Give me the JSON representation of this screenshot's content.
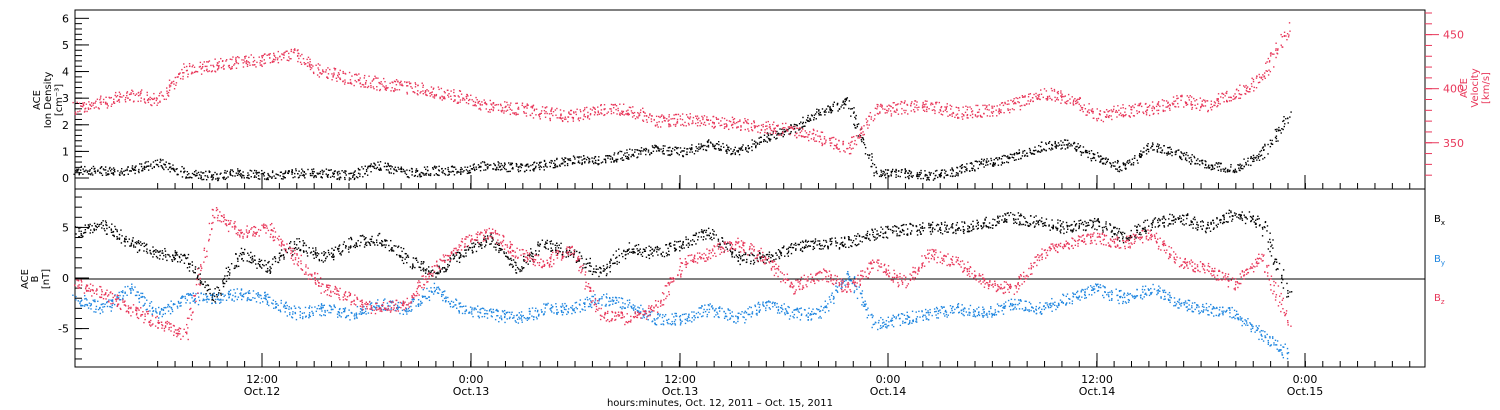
{
  "chart_data": [
    {
      "type": "scatter",
      "instrument": "ACE",
      "ylabel_left": [
        "ACE",
        "Ion Density",
        "[cm⁻³]"
      ],
      "ylabel_right": [
        "ACE",
        "Velocity",
        "[km/s]"
      ],
      "yticks_left": [
        "0",
        "1",
        "2",
        "3",
        "4",
        "5",
        "6"
      ],
      "ylim_left": [
        -0.3,
        6.2
      ],
      "yticks_right": [
        "350",
        "400",
        "450"
      ],
      "ylim_right": [
        310,
        470
      ],
      "series": [
        {
          "axis": "left",
          "color": "#000000",
          "x": [
            0,
            2,
            4,
            6,
            8,
            10,
            12,
            14,
            16,
            18,
            20,
            22,
            24,
            26,
            28,
            30,
            32,
            34,
            36,
            38,
            40,
            42,
            44,
            46,
            48,
            50,
            52,
            54,
            56,
            58,
            60,
            62,
            64,
            66,
            68,
            70,
            72,
            74,
            76,
            78,
            80,
            82,
            84,
            86,
            88
          ],
          "y": [
            0.3,
            0.3,
            0.3,
            0.6,
            0.2,
            0.1,
            0.2,
            0.1,
            0.2,
            0.2,
            0.1,
            0.5,
            0.2,
            0.3,
            0.3,
            0.5,
            0.4,
            0.5,
            0.7,
            0.7,
            0.9,
            1.1,
            1.0,
            1.3,
            1.0,
            1.5,
            1.9,
            2.5,
            2.9,
            0.2,
            0.2,
            0.1,
            0.3,
            0.6,
            0.8,
            1.2,
            1.3,
            0.8,
            0.4,
            1.2,
            0.9,
            0.5,
            0.4,
            0.9,
            2.4
          ]
        },
        {
          "axis": "right",
          "color": "#e8375a",
          "x": [
            0,
            2,
            4,
            6,
            8,
            10,
            12,
            14,
            16,
            18,
            20,
            22,
            24,
            26,
            28,
            30,
            32,
            34,
            36,
            38,
            40,
            42,
            44,
            46,
            48,
            50,
            52,
            54,
            56,
            58,
            60,
            62,
            64,
            66,
            68,
            70,
            72,
            74,
            76,
            78,
            80,
            82,
            84,
            86,
            88
          ],
          "y": [
            382,
            388,
            395,
            390,
            418,
            422,
            425,
            428,
            432,
            415,
            410,
            405,
            402,
            398,
            392,
            384,
            382,
            378,
            375,
            380,
            382,
            370,
            372,
            370,
            368,
            365,
            362,
            355,
            345,
            380,
            383,
            385,
            378,
            380,
            385,
            396,
            392,
            375,
            380,
            382,
            390,
            385,
            395,
            410,
            458
          ]
        }
      ]
    },
    {
      "type": "scatter",
      "ylabel": [
        "ACE",
        "B",
        "[nT]"
      ],
      "yticks": [
        "-5",
        "0",
        "5"
      ],
      "ylim": [
        -8.5,
        8.5
      ],
      "zero_line": true,
      "legend": [
        {
          "name": "Bx",
          "color": "#000000"
        },
        {
          "name": "By",
          "color": "#1f86e0"
        },
        {
          "name": "Bz",
          "color": "#e8375a"
        }
      ],
      "series": [
        {
          "name": "Bx",
          "color": "#000000",
          "x": [
            0,
            2,
            4,
            6,
            8,
            10,
            12,
            14,
            16,
            18,
            20,
            22,
            24,
            26,
            28,
            30,
            32,
            34,
            36,
            38,
            40,
            42,
            44,
            46,
            48,
            50,
            52,
            54,
            56,
            58,
            60,
            62,
            64,
            66,
            68,
            70,
            72,
            74,
            76,
            78,
            80,
            82,
            84,
            86,
            88
          ],
          "y": [
            4.5,
            5.2,
            3.5,
            2.5,
            2.0,
            -2.0,
            2.5,
            1.0,
            3.5,
            2.0,
            3.5,
            4.0,
            2.0,
            0.5,
            2.5,
            4.0,
            1.0,
            3.5,
            2.5,
            0.5,
            3.0,
            2.5,
            3.5,
            4.5,
            2.0,
            2.0,
            3.0,
            3.5,
            3.5,
            4.5,
            4.8,
            5.0,
            5.0,
            5.5,
            6.0,
            5.5,
            5.0,
            5.5,
            4.0,
            5.5,
            6.0,
            5.0,
            6.5,
            5.5,
            -2.0
          ]
        },
        {
          "name": "By",
          "color": "#1f86e0",
          "x": [
            0,
            2,
            4,
            6,
            8,
            10,
            12,
            14,
            16,
            18,
            20,
            22,
            24,
            26,
            28,
            30,
            32,
            34,
            36,
            38,
            40,
            42,
            44,
            46,
            48,
            50,
            52,
            54,
            56,
            58,
            60,
            62,
            64,
            66,
            68,
            70,
            72,
            74,
            76,
            78,
            80,
            82,
            84,
            86,
            88
          ],
          "y": [
            -2.0,
            -3.0,
            -1.0,
            -3.5,
            -2.0,
            -2.0,
            -1.5,
            -2.0,
            -3.5,
            -3.0,
            -3.5,
            -2.5,
            -3.0,
            -1.0,
            -3.0,
            -3.5,
            -4.0,
            -3.0,
            -3.0,
            -2.0,
            -2.5,
            -4.0,
            -4.0,
            -3.0,
            -4.0,
            -2.5,
            -3.5,
            -3.5,
            0.5,
            -4.5,
            -4.0,
            -3.5,
            -3.0,
            -3.5,
            -2.5,
            -3.0,
            -2.0,
            -1.0,
            -2.0,
            -1.0,
            -2.5,
            -3.0,
            -3.5,
            -5.5,
            -7.5
          ]
        },
        {
          "name": "Bz",
          "color": "#e8375a",
          "x": [
            0,
            2,
            4,
            6,
            8,
            10,
            12,
            14,
            16,
            18,
            20,
            22,
            24,
            26,
            28,
            30,
            32,
            34,
            36,
            38,
            40,
            42,
            44,
            46,
            48,
            50,
            52,
            54,
            56,
            58,
            60,
            62,
            64,
            66,
            68,
            70,
            72,
            74,
            76,
            78,
            80,
            82,
            84,
            86,
            88
          ],
          "y": [
            -0.5,
            -1.5,
            -3.0,
            -4.5,
            -5.5,
            6.5,
            4.5,
            5.0,
            2.0,
            -1.0,
            -2.0,
            -3.0,
            -2.5,
            1.0,
            3.5,
            4.5,
            2.5,
            1.5,
            3.0,
            -3.5,
            -4.0,
            -3.0,
            1.5,
            2.5,
            3.5,
            2.0,
            -1.0,
            0.5,
            -1.0,
            1.5,
            -0.5,
            2.5,
            1.5,
            -0.5,
            -1.0,
            2.5,
            3.5,
            4.0,
            3.5,
            4.5,
            1.5,
            1.0,
            -0.5,
            2.0,
            -4.5
          ]
        }
      ]
    }
  ],
  "xaxis": {
    "ticks": [
      {
        "time": "12:00",
        "date": "Oct.12"
      },
      {
        "time": "0:00",
        "date": "Oct.13"
      },
      {
        "time": "12:00",
        "date": "Oct.13"
      },
      {
        "time": "0:00",
        "date": "Oct.14"
      },
      {
        "time": "12:00",
        "date": "Oct.14"
      },
      {
        "time": "0:00",
        "date": "Oct.15"
      }
    ],
    "label": "hours:minutes, Oct. 12, 2011 – Oct. 15, 2011"
  }
}
